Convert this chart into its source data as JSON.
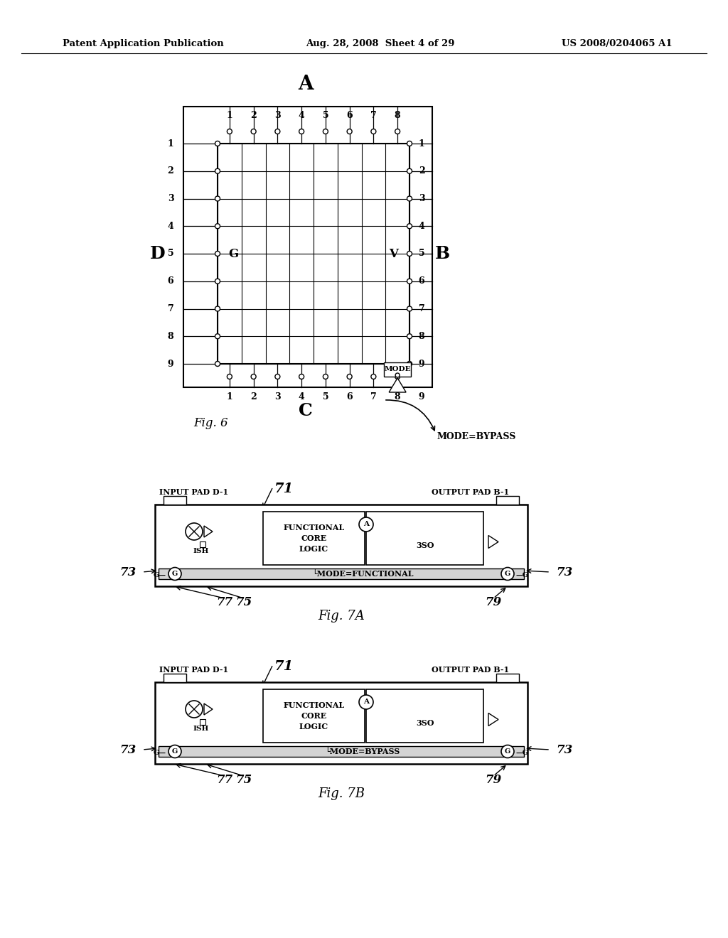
{
  "header_left": "Patent Application Publication",
  "header_center": "Aug. 28, 2008  Sheet 4 of 29",
  "header_right": "US 2008/0204065 A1",
  "fig6": {
    "label": "Fig. 6",
    "label_A": "A",
    "label_B": "B",
    "label_C": "C",
    "label_D": "D",
    "label_G": "G",
    "label_V": "V",
    "mode_label": "MODE",
    "mode_bypass_label": "MODE=BYPASS"
  },
  "fig7a": {
    "label": "Fig. 7A",
    "input_label": "INPUT PAD D-1",
    "output_label": "OUTPUT PAD B-1",
    "number": "71",
    "mode_text": "MODE=FUNCTIONAL",
    "ref_73_left": "73",
    "ref_73_right": "73",
    "ref_77": "77",
    "ref_75": "75",
    "ref_79": "79"
  },
  "fig7b": {
    "label": "Fig. 7B",
    "input_label": "INPUT PAD D-1",
    "output_label": "OUTPUT PAD B-1",
    "number": "71",
    "mode_text": "MODE=BYPASS",
    "ref_73_left": "73",
    "ref_73_right": "73",
    "ref_77": "77",
    "ref_75": "75",
    "ref_79": "79"
  }
}
